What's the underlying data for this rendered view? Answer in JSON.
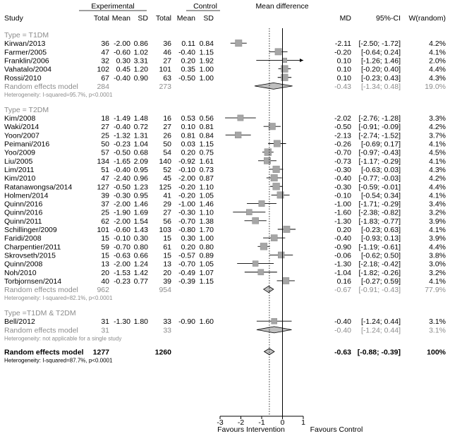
{
  "header": {
    "study": "Study",
    "experimental": "Experimental",
    "control": "Control",
    "total": "Total",
    "mean": "Mean",
    "sd": "SD",
    "mean_difference": "Mean difference",
    "md": "MD",
    "ci": "95%-CI",
    "weight": "W(random)"
  },
  "axis": {
    "ticks": [
      "-3",
      "-2",
      "-1",
      "0",
      "1"
    ],
    "favours_left": "Favours Intervention",
    "favours_right": "Favours Control"
  },
  "chart_data": {
    "type": "forest",
    "xlim": [
      -3,
      1
    ],
    "null_line": 0,
    "overall_md_dotted_line": -0.63,
    "groups": [
      {
        "label": "Type = T1DM",
        "studies": [
          {
            "name": "Kirwan/2013",
            "e_total": "36",
            "e_mean": "-2.00",
            "e_sd": "0.86",
            "c_total": "36",
            "c_mean": "0.11",
            "c_sd": "0.84",
            "md": -2.11,
            "lower": -2.5,
            "upper": -1.72,
            "md_text": "-2.11",
            "ci_text": "[-2.50; -1.72]",
            "weight": "4.2%"
          },
          {
            "name": "Farmer/2005",
            "e_total": "47",
            "e_mean": "-0.60",
            "e_sd": "1.02",
            "c_total": "46",
            "c_mean": "-0.40",
            "c_sd": "1.15",
            "md": -0.2,
            "lower": -0.64,
            "upper": 0.24,
            "md_text": "-0.20",
            "ci_text": "[-0.64; 0.24]",
            "weight": "4.1%"
          },
          {
            "name": "Franklin/2006",
            "e_total": "32",
            "e_mean": "0.30",
            "e_sd": "3.31",
            "c_total": "27",
            "c_mean": "0.20",
            "c_sd": "1.92",
            "md": 0.1,
            "lower": -1.26,
            "upper": 1.46,
            "md_text": "0.10",
            "ci_text": "[-1.26; 1.46]",
            "weight": "2.0%"
          },
          {
            "name": "Vahatalo/2004",
            "e_total": "102",
            "e_mean": "0.45",
            "e_sd": "1.20",
            "c_total": "101",
            "c_mean": "0.35",
            "c_sd": "1.00",
            "md": 0.1,
            "lower": -0.2,
            "upper": 0.4,
            "md_text": "0.10",
            "ci_text": "[-0.20; 0.40]",
            "weight": "4.4%"
          },
          {
            "name": "Rossi/2010",
            "e_total": "67",
            "e_mean": "-0.40",
            "e_sd": "0.90",
            "c_total": "63",
            "c_mean": "-0.50",
            "c_sd": "1.00",
            "md": 0.1,
            "lower": -0.23,
            "upper": 0.43,
            "md_text": "0.10",
            "ci_text": "[-0.23; 0.43]",
            "weight": "4.3%"
          }
        ],
        "summary": {
          "label": "Random effects model",
          "e_total": "284",
          "c_total": "273",
          "md": -0.43,
          "lower": -1.34,
          "upper": 0.48,
          "md_text": "-0.43",
          "ci_text": "[-1.34; 0.48]",
          "weight": "19.0%"
        },
        "heterogeneity": "Heterogeneity: I-squared=95.7%, p<0.0001"
      },
      {
        "label": "Type = T2DM",
        "studies": [
          {
            "name": "Kim/2008",
            "e_total": "18",
            "e_mean": "-1.49",
            "e_sd": "1.48",
            "c_total": "16",
            "c_mean": "0.53",
            "c_sd": "0.56",
            "md": -2.02,
            "lower": -2.76,
            "upper": -1.28,
            "md_text": "-2.02",
            "ci_text": "[-2.76; -1.28]",
            "weight": "3.3%"
          },
          {
            "name": "Waki/2014",
            "e_total": "27",
            "e_mean": "-0.40",
            "e_sd": "0.72",
            "c_total": "27",
            "c_mean": "0.10",
            "c_sd": "0.81",
            "md": -0.5,
            "lower": -0.91,
            "upper": -0.09,
            "md_text": "-0.50",
            "ci_text": "[-0.91; -0.09]",
            "weight": "4.2%"
          },
          {
            "name": "Yoon/2007",
            "e_total": "25",
            "e_mean": "-1.32",
            "e_sd": "1.31",
            "c_total": "26",
            "c_mean": "0.81",
            "c_sd": "0.84",
            "md": -2.13,
            "lower": -2.74,
            "upper": -1.52,
            "md_text": "-2.13",
            "ci_text": "[-2.74; -1.52]",
            "weight": "3.7%"
          },
          {
            "name": "Peimani/2016",
            "e_total": "50",
            "e_mean": "-0.23",
            "e_sd": "1.04",
            "c_total": "50",
            "c_mean": "0.03",
            "c_sd": "1.15",
            "md": -0.26,
            "lower": -0.69,
            "upper": 0.17,
            "md_text": "-0.26",
            "ci_text": "[-0.69; 0.17]",
            "weight": "4.1%"
          },
          {
            "name": "Yoo/2009",
            "e_total": "57",
            "e_mean": "-0.50",
            "e_sd": "0.68",
            "c_total": "54",
            "c_mean": "0.20",
            "c_sd": "0.75",
            "md": -0.7,
            "lower": -0.97,
            "upper": -0.43,
            "md_text": "-0.70",
            "ci_text": "[-0.97; -0.43]",
            "weight": "4.5%"
          },
          {
            "name": "Liu/2005",
            "e_total": "134",
            "e_mean": "-1.65",
            "e_sd": "2.09",
            "c_total": "140",
            "c_mean": "-0.92",
            "c_sd": "1.61",
            "md": -0.73,
            "lower": -1.17,
            "upper": -0.29,
            "md_text": "-0.73",
            "ci_text": "[-1.17; -0.29]",
            "weight": "4.1%"
          },
          {
            "name": "Lim/2011",
            "e_total": "51",
            "e_mean": "-0.40",
            "e_sd": "0.95",
            "c_total": "52",
            "c_mean": "-0.10",
            "c_sd": "0.73",
            "md": -0.3,
            "lower": -0.63,
            "upper": 0.03,
            "md_text": "-0.30",
            "ci_text": "[-0.63; 0.03]",
            "weight": "4.3%"
          },
          {
            "name": "Kim/2010",
            "e_total": "47",
            "e_mean": "-2.40",
            "e_sd": "0.96",
            "c_total": "45",
            "c_mean": "-2.00",
            "c_sd": "0.87",
            "md": -0.4,
            "lower": -0.77,
            "upper": -0.03,
            "md_text": "-0.40",
            "ci_text": "[-0.77; -0.03]",
            "weight": "4.2%"
          },
          {
            "name": "Ratanawongsa/2014",
            "e_total": "127",
            "e_mean": "-0.50",
            "e_sd": "1.23",
            "c_total": "125",
            "c_mean": "-0.20",
            "c_sd": "1.10",
            "md": -0.3,
            "lower": -0.59,
            "upper": -0.01,
            "md_text": "-0.30",
            "ci_text": "[-0.59; -0.01]",
            "weight": "4.4%"
          },
          {
            "name": "Holmen/2014",
            "e_total": "39",
            "e_mean": "-0.30",
            "e_sd": "0.95",
            "c_total": "41",
            "c_mean": "-0.20",
            "c_sd": "1.05",
            "md": -0.1,
            "lower": -0.54,
            "upper": 0.34,
            "md_text": "-0.10",
            "ci_text": "[-0.54; 0.34]",
            "weight": "4.1%"
          },
          {
            "name": "Quinn/2016",
            "e_total": "37",
            "e_mean": "-2.00",
            "e_sd": "1.46",
            "c_total": "29",
            "c_mean": "-1.00",
            "c_sd": "1.46",
            "md": -1.0,
            "lower": -1.71,
            "upper": -0.29,
            "md_text": "-1.00",
            "ci_text": "[-1.71; -0.29]",
            "weight": "3.4%"
          },
          {
            "name": "Quinn/2016",
            "e_total": "25",
            "e_mean": "-1.90",
            "e_sd": "1.69",
            "c_total": "27",
            "c_mean": "-0.30",
            "c_sd": "1.10",
            "md": -1.6,
            "lower": -2.38,
            "upper": -0.82,
            "md_text": "-1.60",
            "ci_text": "[-2.38; -0.82]",
            "weight": "3.2%"
          },
          {
            "name": "Quinn/2011",
            "e_total": "62",
            "e_mean": "-2.00",
            "e_sd": "1.54",
            "c_total": "56",
            "c_mean": "-0.70",
            "c_sd": "1.38",
            "md": -1.3,
            "lower": -1.83,
            "upper": -0.77,
            "md_text": "-1.30",
            "ci_text": "[-1.83; -0.77]",
            "weight": "3.9%"
          },
          {
            "name": "Schillinger/2009",
            "e_total": "101",
            "e_mean": "-0.60",
            "e_sd": "1.43",
            "c_total": "103",
            "c_mean": "-0.80",
            "c_sd": "1.70",
            "md": 0.2,
            "lower": -0.23,
            "upper": 0.63,
            "md_text": "0.20",
            "ci_text": "[-0.23; 0.63]",
            "weight": "4.1%"
          },
          {
            "name": "Faridi/2008",
            "e_total": "15",
            "e_mean": "-0.10",
            "e_sd": "0.30",
            "c_total": "15",
            "c_mean": "0.30",
            "c_sd": "1.00",
            "md": -0.4,
            "lower": -0.93,
            "upper": 0.13,
            "md_text": "-0.40",
            "ci_text": "[-0.93; 0.13]",
            "weight": "3.9%"
          },
          {
            "name": "Charpentier/2011",
            "e_total": "59",
            "e_mean": "-0.70",
            "e_sd": "0.80",
            "c_total": "61",
            "c_mean": "0.20",
            "c_sd": "0.80",
            "md": -0.9,
            "lower": -1.19,
            "upper": -0.61,
            "md_text": "-0.90",
            "ci_text": "[-1.19; -0.61]",
            "weight": "4.4%"
          },
          {
            "name": "Skrovseth/2015",
            "e_total": "15",
            "e_mean": "-0.63",
            "e_sd": "0.66",
            "c_total": "15",
            "c_mean": "-0.57",
            "c_sd": "0.89",
            "md": -0.06,
            "lower": -0.62,
            "upper": 0.5,
            "md_text": "-0.06",
            "ci_text": "[-0.62; 0.50]",
            "weight": "3.8%"
          },
          {
            "name": "Quinn/2008",
            "e_total": "13",
            "e_mean": "-2.00",
            "e_sd": "1.24",
            "c_total": "13",
            "c_mean": "-0.70",
            "c_sd": "1.05",
            "md": -1.3,
            "lower": -2.18,
            "upper": -0.42,
            "md_text": "-1.30",
            "ci_text": "[-2.18; -0.42]",
            "weight": "3.0%"
          },
          {
            "name": "Noh/2010",
            "e_total": "20",
            "e_mean": "-1.53",
            "e_sd": "1.42",
            "c_total": "20",
            "c_mean": "-0.49",
            "c_sd": "1.07",
            "md": -1.04,
            "lower": -1.82,
            "upper": -0.26,
            "md_text": "-1.04",
            "ci_text": "[-1.82; -0.26]",
            "weight": "3.2%"
          },
          {
            "name": "Torbjornsen/2014",
            "e_total": "40",
            "e_mean": "-0.23",
            "e_sd": "0.77",
            "c_total": "39",
            "c_mean": "-0.39",
            "c_sd": "1.15",
            "md": 0.16,
            "lower": -0.27,
            "upper": 0.59,
            "md_text": "0.16",
            "ci_text": "[-0.27; 0.59]",
            "weight": "4.1%"
          }
        ],
        "summary": {
          "label": "Random effects model",
          "e_total": "962",
          "c_total": "954",
          "md": -0.67,
          "lower": -0.91,
          "upper": -0.43,
          "md_text": "-0.67",
          "ci_text": "[-0.91; -0.43]",
          "weight": "77.9%"
        },
        "heterogeneity": "Heterogeneity: I-squared=82.1%, p<0.0001"
      },
      {
        "label": "Type =T1DM & T2DM",
        "studies": [
          {
            "name": "Bell/2012",
            "e_total": "31",
            "e_mean": "-1.30",
            "e_sd": "1.80",
            "c_total": "33",
            "c_mean": "-0.90",
            "c_sd": "1.60",
            "md": -0.4,
            "lower": -1.24,
            "upper": 0.44,
            "md_text": "-0.40",
            "ci_text": "[-1.24; 0.44]",
            "weight": "3.1%"
          }
        ],
        "summary": {
          "label": "Random effects model",
          "e_total": "31",
          "c_total": "33",
          "md": -0.4,
          "lower": -1.24,
          "upper": 0.44,
          "md_text": "-0.40",
          "ci_text": "[-1.24; 0.44]",
          "weight": "3.1%"
        },
        "heterogeneity": "Heterogeneity: not applicable for a single study"
      }
    ],
    "overall": {
      "label": "Random effects model",
      "e_total": "1277",
      "c_total": "1260",
      "md": -0.63,
      "lower": -0.88,
      "upper": -0.39,
      "md_text": "-0.63",
      "ci_text": "[-0.88; -0.39]",
      "weight": "100%"
    },
    "overall_heterogeneity": "Heterogeneity: I-squared=87.7%, p<0.0001"
  }
}
